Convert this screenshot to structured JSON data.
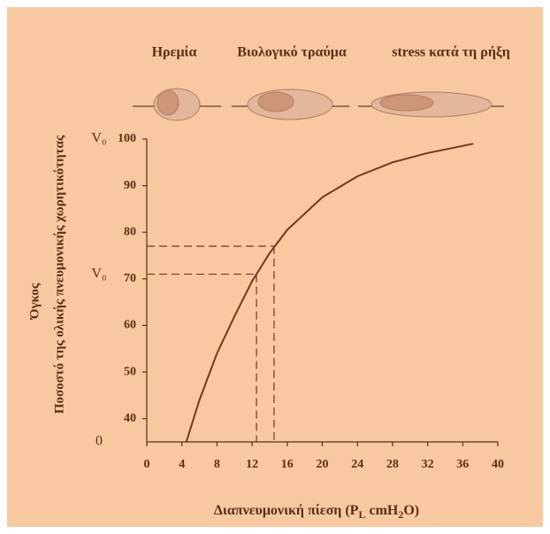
{
  "chart_data": {
    "type": "line",
    "top_labels": [
      "Ηρεμία",
      "Βιολογικό τραύμα",
      "stress κατά τη ρήξη"
    ],
    "y_title_lines": [
      "Όγκος",
      "Ποσοστό της ολικής πνευμονικής χωρητικότητας"
    ],
    "x_title_parts": [
      "Διαπνευμονική πίεση (P",
      "L",
      " cmH",
      "2",
      "O)"
    ],
    "x": [
      4.5,
      6,
      8,
      10,
      12,
      14,
      16,
      20,
      24,
      28,
      32,
      37.2
    ],
    "values": [
      35,
      44,
      54,
      62,
      69.5,
      75.5,
      80.5,
      87.5,
      92,
      95,
      97,
      99
    ],
    "color": "#6b3a22",
    "reference_points": [
      {
        "x": 12.5,
        "y": 71
      },
      {
        "x": 14.5,
        "y": 77
      }
    ],
    "y_annotations": [
      {
        "value": 100,
        "label": "V₀"
      },
      {
        "value": 71,
        "label": "V₀"
      },
      {
        "value": 35,
        "label": "0"
      }
    ],
    "xlim": [
      0,
      40
    ],
    "xticks": [
      0,
      4,
      8,
      12,
      16,
      20,
      24,
      28,
      32,
      36,
      40
    ],
    "ylim": [
      35,
      100
    ],
    "yticks": [
      40,
      50,
      60,
      70,
      80,
      90,
      100
    ],
    "grid": false
  }
}
